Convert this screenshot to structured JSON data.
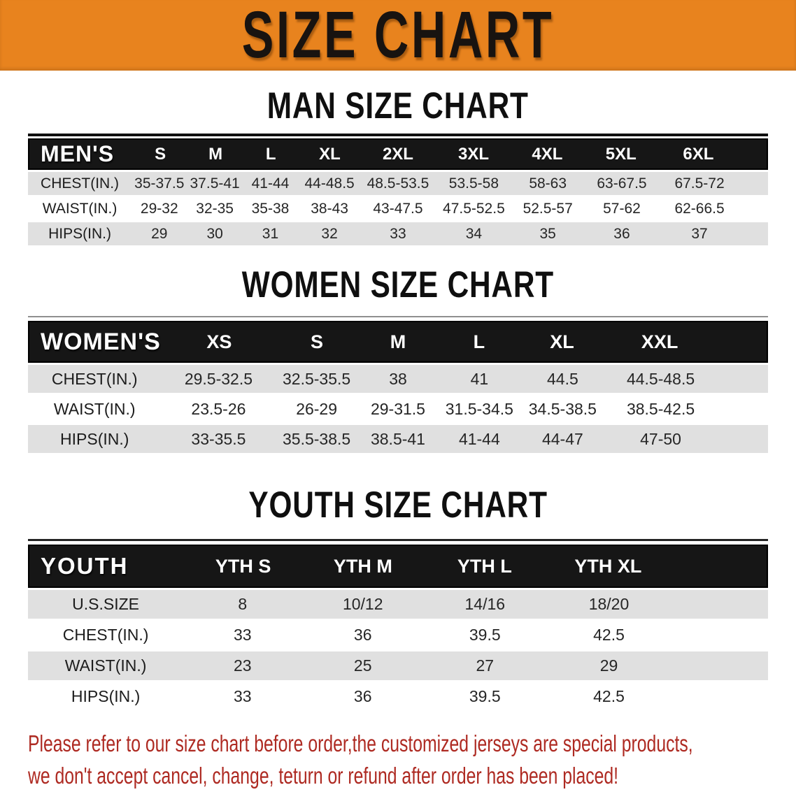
{
  "banner": {
    "title": "SIZE CHART",
    "bg_color": "#E8831E"
  },
  "sections": [
    {
      "heading": "MAN SIZE CHART",
      "corner": "MEN'S",
      "columns": [
        "S",
        "M",
        "L",
        "XL",
        "2XL",
        "3XL",
        "4XL",
        "5XL",
        "6XL"
      ],
      "rows": [
        {
          "label": "CHEST(IN.)",
          "values": [
            "35-37.5",
            "37.5-41",
            "41-44",
            "44-48.5",
            "48.5-53.5",
            "53.5-58",
            "58-63",
            "63-67.5",
            "67.5-72"
          ]
        },
        {
          "label": "WAIST(IN.)",
          "values": [
            "29-32",
            "32-35",
            "35-38",
            "38-43",
            "43-47.5",
            "47.5-52.5",
            "52.5-57",
            "57-62",
            "62-66.5"
          ]
        },
        {
          "label": "HIPS(IN.)",
          "values": [
            "29",
            "30",
            "31",
            "32",
            "33",
            "34",
            "35",
            "36",
            "37"
          ]
        }
      ]
    },
    {
      "heading": "WOMEN SIZE CHART",
      "corner": "WOMEN'S",
      "columns": [
        "XS",
        "S",
        "M",
        "L",
        "XL",
        "XXL"
      ],
      "rows": [
        {
          "label": "CHEST(IN.)",
          "values": [
            "29.5-32.5",
            "32.5-35.5",
            "38",
            "41",
            "44.5",
            "44.5-48.5"
          ]
        },
        {
          "label": "WAIST(IN.)",
          "values": [
            "23.5-26",
            "26-29",
            "29-31.5",
            "31.5-34.5",
            "34.5-38.5",
            "38.5-42.5"
          ]
        },
        {
          "label": "HIPS(IN.)",
          "values": [
            "33-35.5",
            "35.5-38.5",
            "38.5-41",
            "41-44",
            "44-47",
            "47-50"
          ]
        }
      ]
    },
    {
      "heading": "YOUTH SIZE CHART",
      "corner": "YOUTH",
      "columns": [
        "YTH S",
        "YTH M",
        "YTH L",
        "YTH XL"
      ],
      "rows": [
        {
          "label": "U.S.SIZE",
          "values": [
            "8",
            "10/12",
            "14/16",
            "18/20"
          ]
        },
        {
          "label": "CHEST(IN.)",
          "values": [
            "33",
            "36",
            "39.5",
            "42.5"
          ]
        },
        {
          "label": "WAIST(IN.)",
          "values": [
            "23",
            "25",
            "27",
            "29"
          ]
        },
        {
          "label": "HIPS(IN.)",
          "values": [
            "33",
            "36",
            "39.5",
            "42.5"
          ]
        }
      ]
    }
  ],
  "footer": {
    "line1": "Please refer to our size chart before order,the customized jerseys are special products,",
    "line2": "we don't accept cancel, change, teturn or refund after order has been placed!",
    "text_color": "#AE2A22"
  }
}
